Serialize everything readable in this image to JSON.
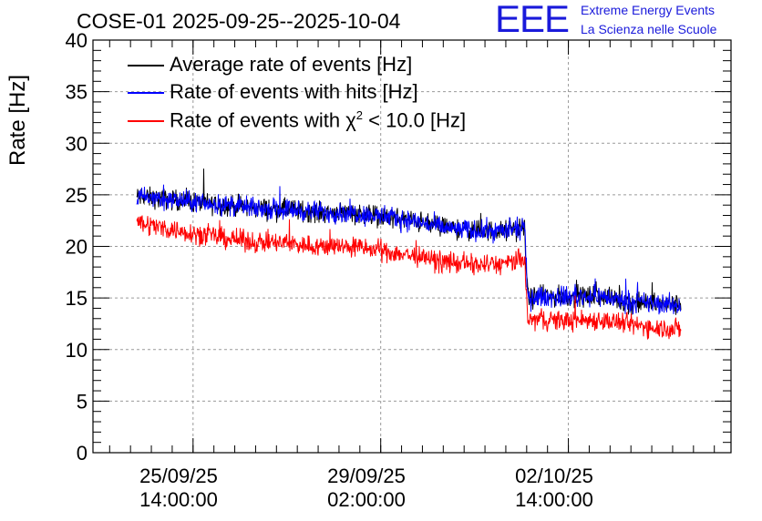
{
  "title": "COSE-01 2025-09-25--2025-10-04",
  "logo": {
    "mark": "EEE",
    "line1": "Extreme Energy Events",
    "line2": "La Scienza nelle Scuole",
    "color": "#1a1adb"
  },
  "chart_data": {
    "type": "line",
    "title": "COSE-01 2025-09-25--2025-10-04",
    "xlabel": "",
    "ylabel": "Rate [Hz]",
    "ylim": [
      0,
      40
    ],
    "yticks": [
      0,
      5,
      10,
      15,
      20,
      25,
      30,
      35,
      40
    ],
    "xlim": [
      -1.6,
      8.6
    ],
    "xticks": [
      {
        "pos": 0,
        "line1": "25/09/25",
        "line2": "14:00:00"
      },
      {
        "pos": 3,
        "line1": "29/09/25",
        "line2": "02:00:00"
      },
      {
        "pos": 6,
        "line1": "02/10/25",
        "line2": "14:00:00"
      }
    ],
    "grid": true,
    "legend": {
      "placement": "top-left",
      "entries": [
        {
          "name": "Average rate of events [Hz]",
          "color": "#000000"
        },
        {
          "name": "Rate of events with hits [Hz]",
          "color": "#0000ff"
        },
        {
          "name_prefix": "Rate of events with ",
          "chi": "χ",
          "sup": "2",
          "name_suffix": " < 10.0 [Hz]",
          "color": "#ff0000"
        }
      ]
    },
    "x": [
      -0.9,
      -0.5,
      0,
      0.5,
      1,
      1.5,
      2,
      2.5,
      3,
      3.5,
      4,
      4.5,
      5,
      5.3,
      5.35,
      5.5,
      6,
      6.5,
      7,
      7.5,
      7.8
    ],
    "series": [
      {
        "name": "Average rate of events [Hz]",
        "color": "#000000",
        "values": [
          24.8,
          24.6,
          24.3,
          24.0,
          23.7,
          23.6,
          23.3,
          23.3,
          22.9,
          22.5,
          21.8,
          21.5,
          21.5,
          21.8,
          15.0,
          15.1,
          15.1,
          15.2,
          14.6,
          14.4,
          14.3
        ],
        "noise": 0.9
      },
      {
        "name": "Rate of events with hits [Hz]",
        "color": "#0000ff",
        "values": [
          24.8,
          24.6,
          24.3,
          24.0,
          23.7,
          23.6,
          23.3,
          23.3,
          22.9,
          22.5,
          21.8,
          21.5,
          21.5,
          21.8,
          15.0,
          15.1,
          15.1,
          15.2,
          14.6,
          14.4,
          14.3
        ],
        "noise": 0.9
      },
      {
        "name": "Rate of events with χ2 < 10.0 [Hz]",
        "color": "#ff0000",
        "values": [
          22.4,
          21.8,
          21.3,
          20.8,
          20.4,
          20.3,
          20.0,
          20.0,
          19.6,
          19.1,
          18.5,
          18.2,
          18.3,
          18.8,
          12.8,
          12.9,
          12.8,
          12.9,
          12.4,
          12.1,
          12.0
        ],
        "noise": 0.9
      }
    ]
  }
}
